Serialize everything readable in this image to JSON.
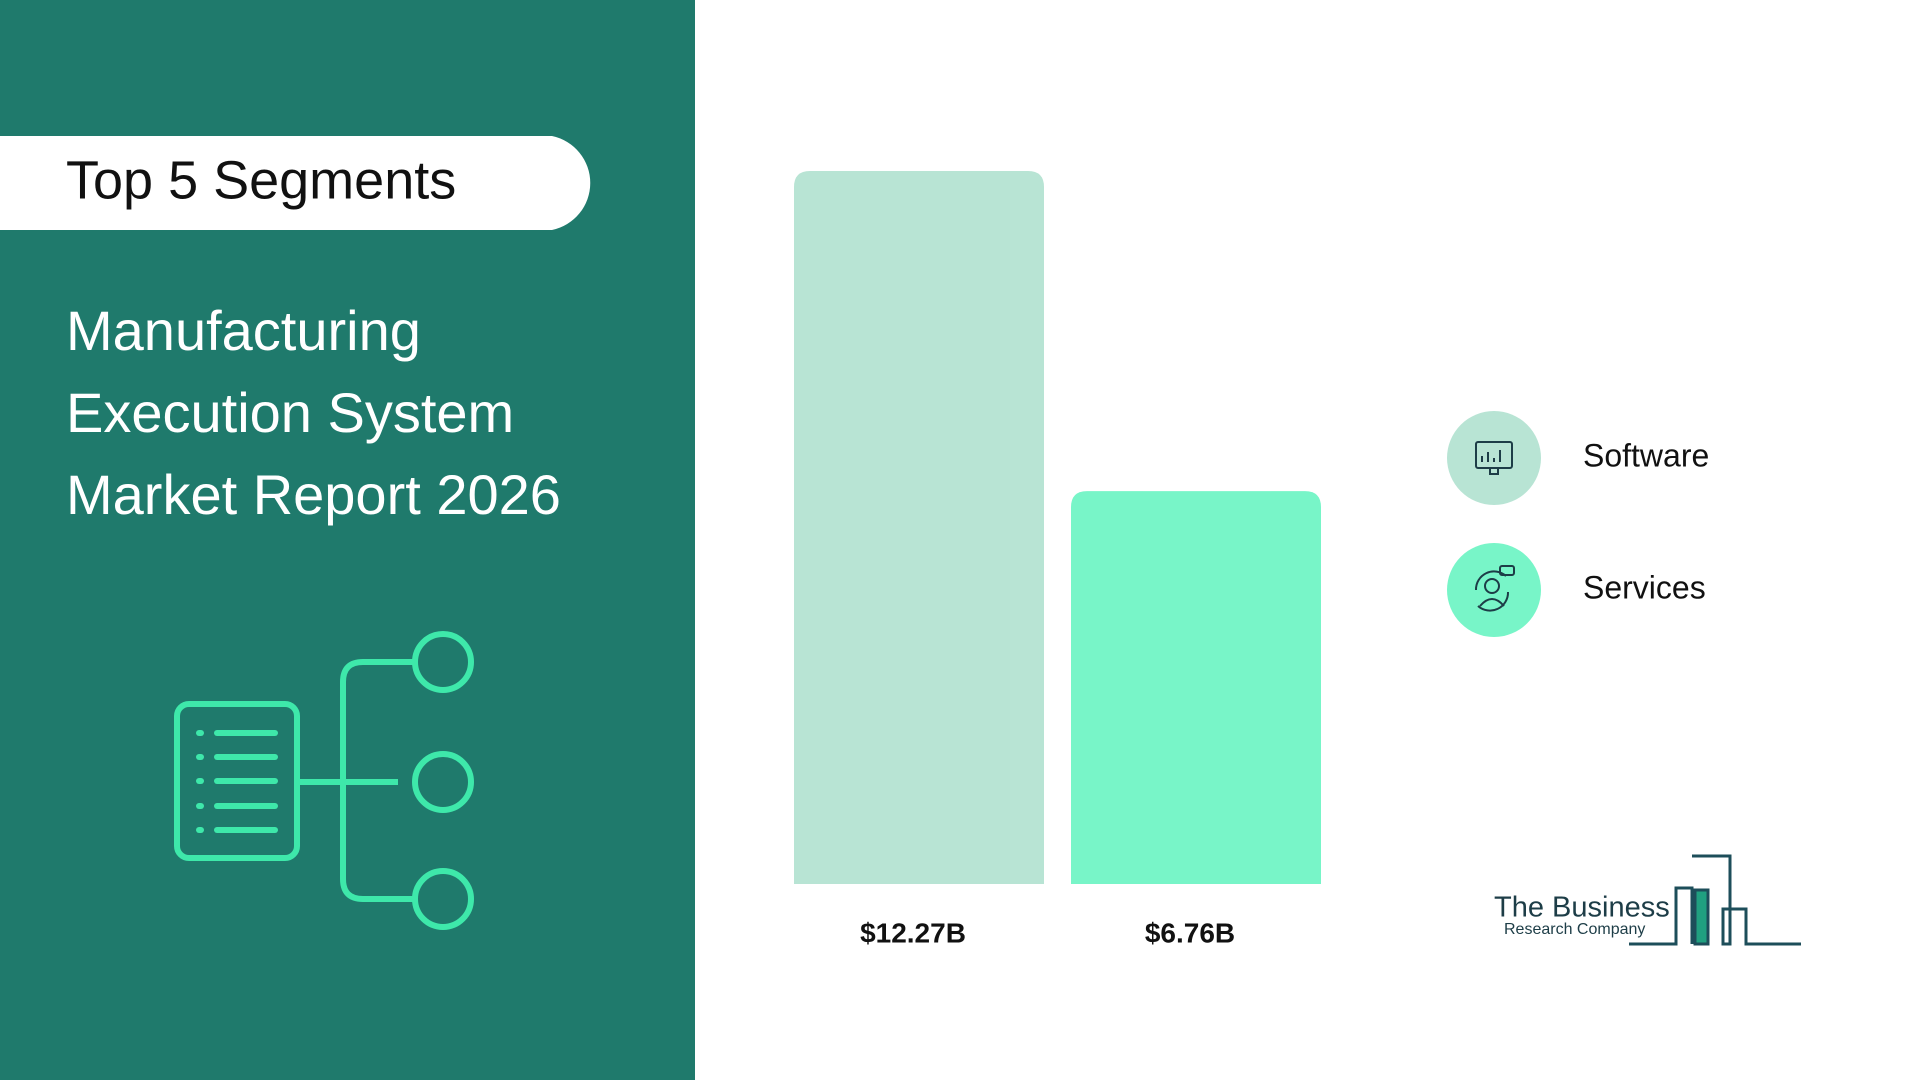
{
  "badge": "Top 5 Segments",
  "chart_data": {
    "type": "bar",
    "title": "Manufacturing Execution System Market Report 2026",
    "categories": [
      "Software",
      "Services"
    ],
    "values": [
      12.27,
      6.76
    ],
    "value_labels": [
      "$12.27B",
      "$6.76B"
    ],
    "colors": [
      "#b8e4d4",
      "#78f5c8"
    ]
  },
  "logo": {
    "name": "The Business",
    "subtitle": "Research Company"
  }
}
